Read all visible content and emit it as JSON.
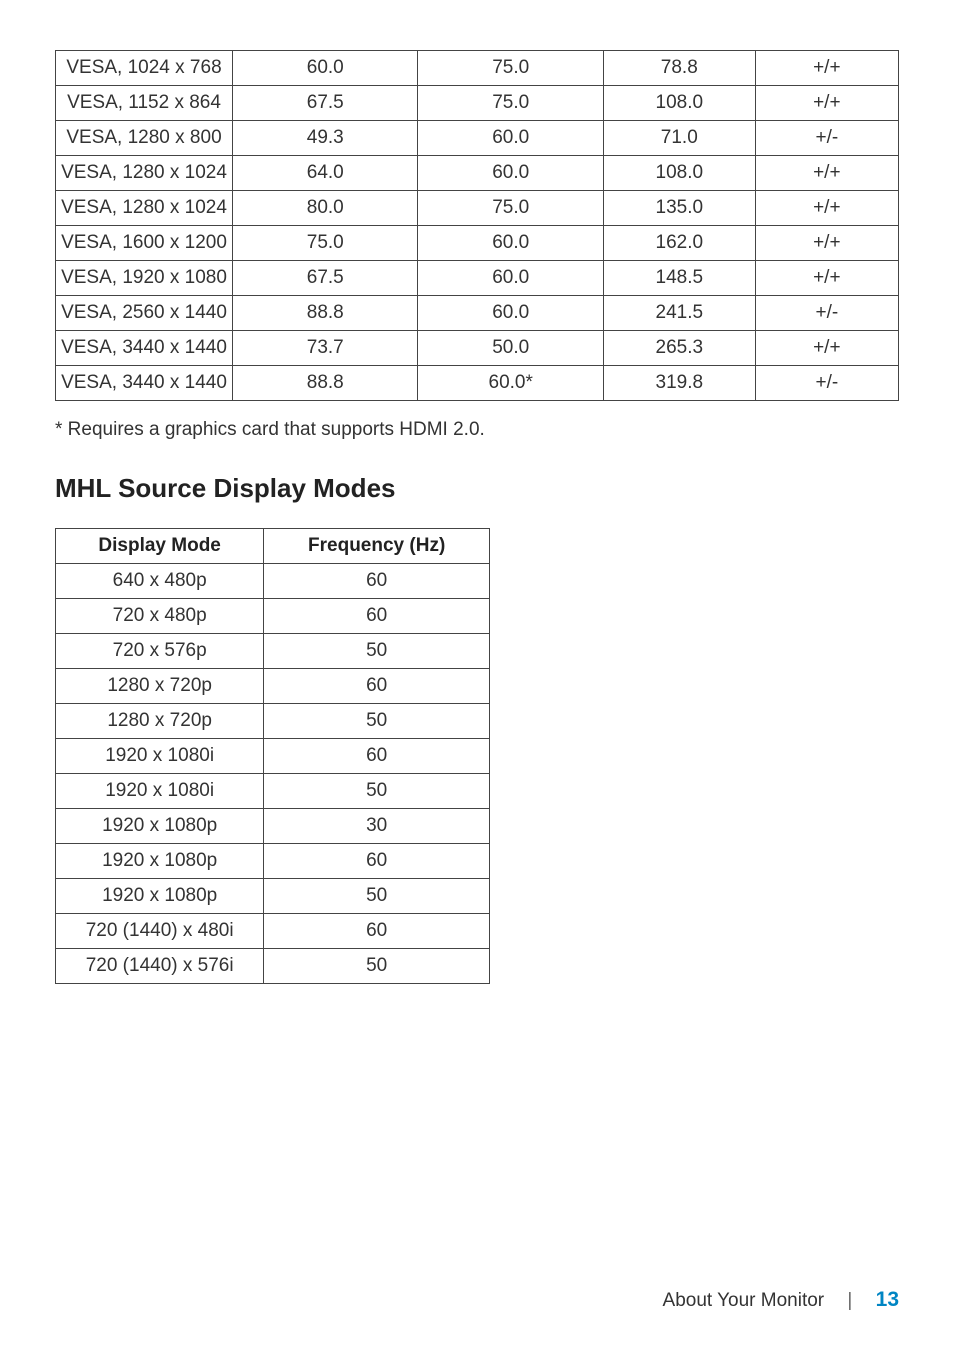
{
  "display_modes_table": {
    "rows": [
      {
        "mode": "VESA, 1024 x 768",
        "c2": "60.0",
        "c3": "75.0",
        "c4": "78.8",
        "c5": "+/+"
      },
      {
        "mode": "VESA, 1152 x 864",
        "c2": "67.5",
        "c3": "75.0",
        "c4": "108.0",
        "c5": "+/+"
      },
      {
        "mode": "VESA, 1280 x 800",
        "c2": "49.3",
        "c3": "60.0",
        "c4": "71.0",
        "c5": "+/-"
      },
      {
        "mode": "VESA, 1280 x 1024",
        "c2": "64.0",
        "c3": "60.0",
        "c4": "108.0",
        "c5": "+/+"
      },
      {
        "mode": "VESA, 1280 x 1024",
        "c2": "80.0",
        "c3": "75.0",
        "c4": "135.0",
        "c5": "+/+"
      },
      {
        "mode": "VESA, 1600 x 1200",
        "c2": "75.0",
        "c3": "60.0",
        "c4": "162.0",
        "c5": "+/+"
      },
      {
        "mode": "VESA, 1920 x 1080",
        "c2": "67.5",
        "c3": "60.0",
        "c4": "148.5",
        "c5": "+/+"
      },
      {
        "mode": "VESA, 2560 x 1440",
        "c2": "88.8",
        "c3": "60.0",
        "c4": "241.5",
        "c5": "+/-"
      },
      {
        "mode": "VESA, 3440 x 1440",
        "c2": "73.7",
        "c3": "50.0",
        "c4": "265.3",
        "c5": "+/+"
      },
      {
        "mode": "VESA, 3440 x 1440",
        "c2": "88.8",
        "c3": "60.0*",
        "c4": "319.8",
        "c5": "+/-"
      }
    ]
  },
  "footnote_text": "* Requires a graphics card that supports HDMI 2.0.",
  "mhl_heading": "MHL Source Display Modes",
  "mhl_table": {
    "headers": {
      "col1": "Display Mode",
      "col2": "Frequency (Hz)"
    },
    "rows": [
      {
        "mode": "640 x 480p",
        "freq": "60"
      },
      {
        "mode": "720 x 480p",
        "freq": "60"
      },
      {
        "mode": "720 x 576p",
        "freq": "50"
      },
      {
        "mode": "1280 x 720p",
        "freq": "60"
      },
      {
        "mode": "1280 x 720p",
        "freq": "50"
      },
      {
        "mode": "1920 x 1080i",
        "freq": "60"
      },
      {
        "mode": "1920 x 1080i",
        "freq": "50"
      },
      {
        "mode": "1920 x 1080p",
        "freq": "30"
      },
      {
        "mode": "1920 x 1080p",
        "freq": "60"
      },
      {
        "mode": "1920 x 1080p",
        "freq": "50"
      },
      {
        "mode": "720 (1440) x 480i",
        "freq": "60"
      },
      {
        "mode": "720 (1440) x 576i",
        "freq": "50"
      }
    ]
  },
  "footer": {
    "section": "About Your Monitor",
    "divider": "|",
    "page": "13"
  },
  "colors": {
    "text": "#333333",
    "heading": "#222222",
    "accent": "#0085c3",
    "border": "#444444",
    "bg": "#ffffff"
  },
  "typography": {
    "body_fontsize": 19,
    "heading_fontsize": 26,
    "pagenum_fontsize": 21
  }
}
